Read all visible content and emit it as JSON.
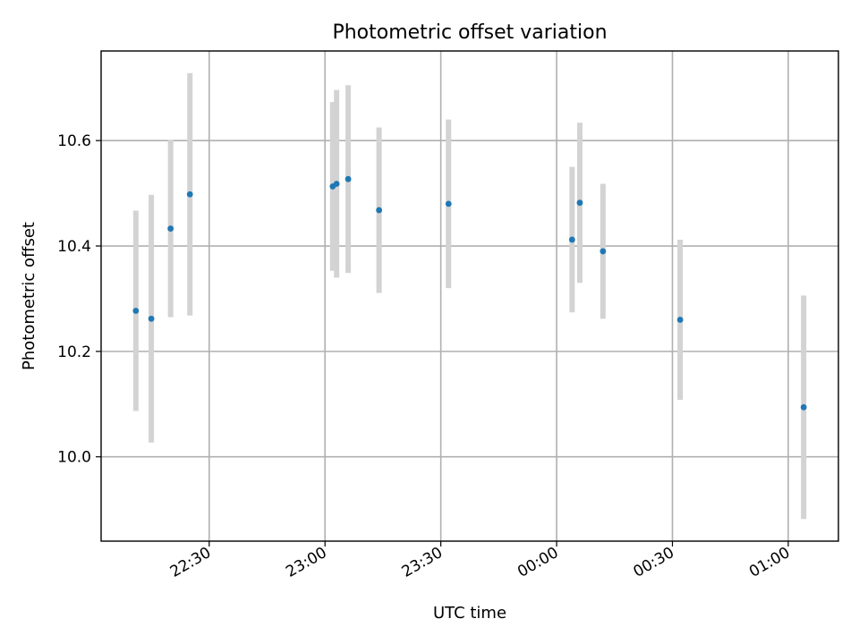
{
  "chart_data": {
    "type": "scatter",
    "title": "Photometric offset variation",
    "xlabel": "UTC time",
    "ylabel": "Photometric offset",
    "grid": true,
    "x_tick_labels": [
      "22:30",
      "23:00",
      "23:30",
      "00:00",
      "00:30",
      "01:00"
    ],
    "y_tick_labels": [
      "10.0",
      "10.2",
      "10.4",
      "10.6"
    ],
    "y_ticks": [
      10.0,
      10.2,
      10.4,
      10.6
    ],
    "x_ticks": [
      "22:30",
      "23:00",
      "23:30",
      "00:00",
      "00:30",
      "01:00"
    ],
    "xlim": [
      "22:02",
      "01:13"
    ],
    "ylim": [
      9.84,
      10.77
    ],
    "marker_color": "#1f77b4",
    "errorbar_color": "#d3d3d3",
    "points": [
      {
        "time": "22:11",
        "y": 10.277,
        "err": 0.19
      },
      {
        "time": "22:15",
        "y": 10.262,
        "err": 0.235
      },
      {
        "time": "22:20",
        "y": 10.433,
        "err": 0.168
      },
      {
        "time": "22:25",
        "y": 10.498,
        "err": 0.23
      },
      {
        "time": "23:02",
        "y": 10.513,
        "err": 0.16
      },
      {
        "time": "23:03",
        "y": 10.518,
        "err": 0.178
      },
      {
        "time": "23:06",
        "y": 10.527,
        "err": 0.178
      },
      {
        "time": "23:14",
        "y": 10.468,
        "err": 0.157
      },
      {
        "time": "23:32",
        "y": 10.48,
        "err": 0.16
      },
      {
        "time": "00:04",
        "y": 10.412,
        "err": 0.138
      },
      {
        "time": "00:06",
        "y": 10.482,
        "err": 0.152
      },
      {
        "time": "00:12",
        "y": 10.39,
        "err": 0.128
      },
      {
        "time": "00:32",
        "y": 10.26,
        "err": 0.152
      },
      {
        "time": "01:04",
        "y": 10.094,
        "err": 0.212
      }
    ]
  }
}
